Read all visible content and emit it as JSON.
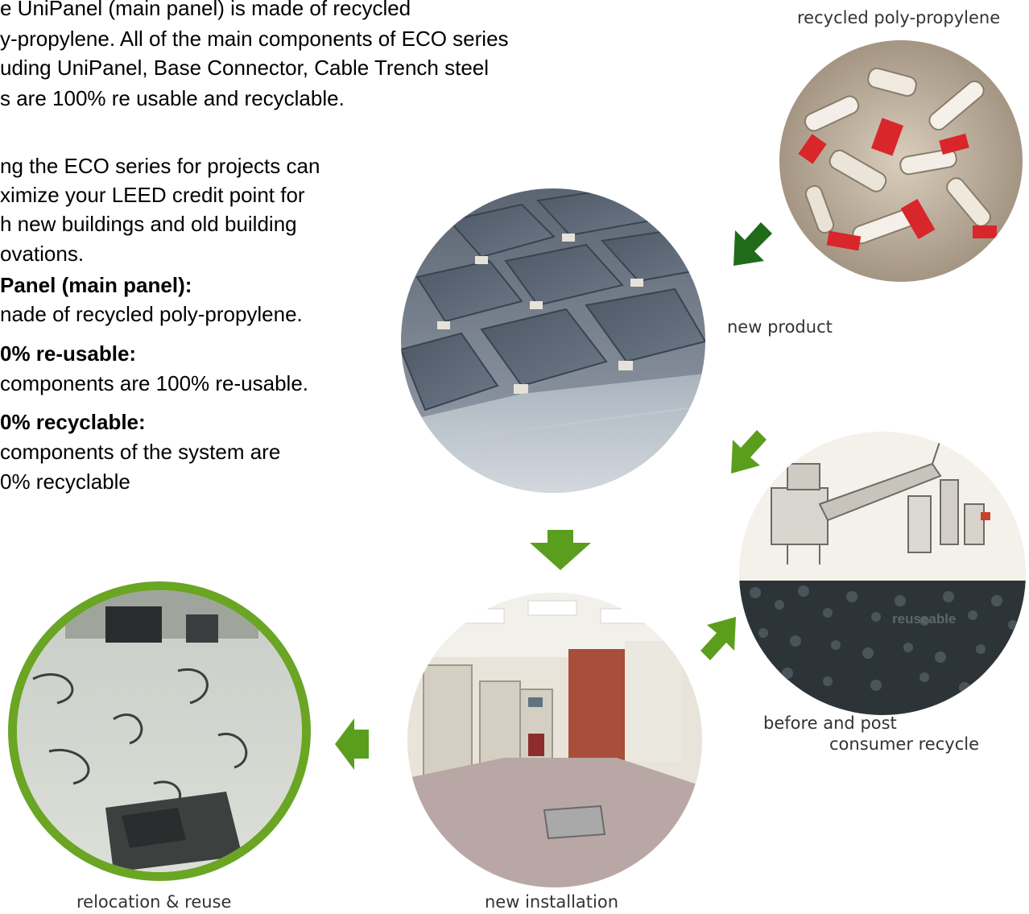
{
  "intro": {
    "lines": [
      "e UniPanel (main panel) is made of recycled",
      "y-propylene. All of the main components of ECO series",
      "uding UniPanel, Base Connector, Cable Trench steel",
      "s are 100% re usable and recyclable."
    ]
  },
  "leed": {
    "lines": [
      "ng the ECO series for projects can",
      "ximize your LEED credit point for",
      "h new buildings and old building",
      "ovations."
    ]
  },
  "features": [
    {
      "heading": "Panel (main panel):",
      "body": [
        "nade of recycled poly-propylene."
      ]
    },
    {
      "heading": "0% re-usable:",
      "body": [
        "components are 100% re-usable."
      ]
    },
    {
      "heading": "0% recyclable:",
      "body": [
        "components of the system are",
        "0% recyclable"
      ]
    }
  ],
  "captions": {
    "recycled": "recycled poly-propylene",
    "new_product": "new product",
    "before_post_1": "before and post",
    "before_post_2": "consumer recycle",
    "reuseable": "reuseable",
    "new_installation": "new installation",
    "relocation": "relocation & reuse"
  },
  "colors": {
    "arrow_green": "#5b9e1e",
    "arrow_dark_green": "#1f6b1a",
    "ring_green": "#6aa524"
  }
}
